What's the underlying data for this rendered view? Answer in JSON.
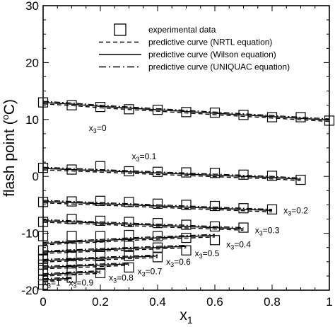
{
  "chart_data": {
    "type": "line",
    "xlabel": "x",
    "xlabel_sub": "1",
    "ylabel": "flash point (",
    "ylabel_sup": "o",
    "ylabel_tail": "C)",
    "xlim": [
      0,
      1
    ],
    "ylim": [
      -20,
      30
    ],
    "x_ticks": [
      {
        "v": 0,
        "label": "0"
      },
      {
        "v": 0.2,
        "label": "0.2"
      },
      {
        "v": 0.4,
        "label": "0.4"
      },
      {
        "v": 0.6,
        "label": "0.6"
      },
      {
        "v": 0.8,
        "label": "0.8"
      },
      {
        "v": 1,
        "label": "1"
      }
    ],
    "y_ticks": [
      {
        "v": -20,
        "label": "-20"
      },
      {
        "v": -10,
        "label": "-10"
      },
      {
        "v": 0,
        "label": "0"
      },
      {
        "v": 10,
        "label": "10"
      },
      {
        "v": 20,
        "label": "20"
      },
      {
        "v": 30,
        "label": "30"
      }
    ],
    "minor_x_step": 0.05,
    "minor_y_step": 2.5,
    "legend": {
      "placement": "top-center",
      "entries": [
        {
          "style": "square",
          "label": "experimental data"
        },
        {
          "style": "dashed",
          "label": "predictive curve (NRTL equation)"
        },
        {
          "style": "solid",
          "label": "predictive curve (Wilson equation)"
        },
        {
          "style": "dashdot",
          "label": "predictive curve (UNIQUAC equation)"
        }
      ]
    },
    "series": [
      {
        "label_pre": "x",
        "label_sub": "3",
        "label_post": "=0",
        "label_at": [
          0.16,
          8.0
        ],
        "x": [
          0,
          0.1,
          0.2,
          0.3,
          0.4,
          0.5,
          0.6,
          0.7,
          0.8,
          0.9,
          1.0
        ],
        "exp": [
          13.0,
          12.5,
          12.2,
          11.8,
          11.7,
          11.3,
          11.2,
          10.8,
          10.4,
          10.4,
          9.8
        ],
        "pred": [
          13.0,
          12.7,
          12.3,
          12.0,
          11.7,
          11.4,
          11.1,
          10.8,
          10.5,
          10.2,
          9.9
        ]
      },
      {
        "label_pre": "x",
        "label_sub": "3",
        "label_post": "=0.1",
        "label_at": [
          0.31,
          3.0
        ],
        "x": [
          0,
          0.1,
          0.2,
          0.3,
          0.4,
          0.5,
          0.6,
          0.7,
          0.8,
          0.9
        ],
        "exp": [
          1.5,
          1.2,
          1.8,
          0.9,
          0.8,
          0.7,
          0.6,
          0.3,
          0.1,
          -0.6
        ],
        "pred": [
          1.4,
          1.2,
          1.0,
          0.8,
          0.6,
          0.4,
          0.2,
          0.0,
          -0.2,
          -0.5
        ]
      },
      {
        "label_pre": "x",
        "label_sub": "3",
        "label_post": "=0.2",
        "label_at": [
          0.84,
          -6.5
        ],
        "x": [
          0,
          0.1,
          0.2,
          0.3,
          0.4,
          0.5,
          0.6,
          0.7,
          0.8
        ],
        "exp": [
          -4.5,
          -4.4,
          -4.3,
          -4.5,
          -4.8,
          -5.0,
          -5.2,
          -5.6,
          -5.8
        ],
        "pred": [
          -4.4,
          -4.6,
          -4.8,
          -5.0,
          -5.2,
          -5.4,
          -5.6,
          -5.8,
          -6.0
        ]
      },
      {
        "label_pre": "x",
        "label_sub": "3",
        "label_post": "=0.3",
        "label_at": [
          0.74,
          -10.0
        ],
        "x": [
          0,
          0.1,
          0.2,
          0.3,
          0.4,
          0.5,
          0.6,
          0.7
        ],
        "exp": [
          -8.0,
          -7.5,
          -7.8,
          -8.0,
          -8.2,
          -8.5,
          -8.8,
          -9.0
        ],
        "pred": [
          -7.8,
          -8.0,
          -8.2,
          -8.4,
          -8.6,
          -8.8,
          -9.0,
          -9.2
        ]
      },
      {
        "label_pre": "x",
        "label_sub": "3",
        "label_post": "=0.4",
        "label_at": [
          0.64,
          -12.5
        ],
        "x": [
          0,
          0.1,
          0.2,
          0.3,
          0.4,
          0.5,
          0.6
        ],
        "exp": [
          -10.5,
          -10.5,
          -10.5,
          -10.3,
          -10.5,
          -10.8,
          -11.2
        ],
        "pred": [
          -11.8,
          -11.5,
          -11.3,
          -11.0,
          -10.8,
          -10.6,
          -10.4
        ]
      },
      {
        "label_pre": "x",
        "label_sub": "3",
        "label_post": "=0.5",
        "label_at": [
          0.53,
          -14.0
        ],
        "x": [
          0,
          0.1,
          0.2,
          0.3,
          0.4,
          0.5
        ],
        "exp": [
          -13.0,
          -12.5,
          -12.3,
          -12.2,
          -12.5,
          -13.0
        ],
        "pred": [
          -13.3,
          -13.1,
          -12.9,
          -12.7,
          -12.5,
          -12.3
        ]
      },
      {
        "label_pre": "x",
        "label_sub": "3",
        "label_post": "=0.6",
        "label_at": [
          0.43,
          -15.5
        ],
        "x": [
          0,
          0.1,
          0.2,
          0.3,
          0.4
        ],
        "exp": [
          -14.5,
          -14.0,
          -14.0,
          -14.0,
          -14.2
        ],
        "pred": [
          -14.8,
          -14.6,
          -14.4,
          -14.2,
          -14.0
        ]
      },
      {
        "label_pre": "x",
        "label_sub": "3",
        "label_post": "=0.7",
        "label_at": [
          0.33,
          -17.2
        ],
        "x": [
          0,
          0.1,
          0.2,
          0.3
        ],
        "exp": [
          -15.5,
          -15.3,
          -15.5,
          -16.0
        ],
        "pred": [
          -16.0,
          -15.8,
          -15.6,
          -15.4
        ]
      },
      {
        "label_pre": "x",
        "label_sub": "3",
        "label_post": "=0.8",
        "label_at": [
          0.23,
          -18.3
        ],
        "x": [
          0,
          0.1,
          0.2
        ],
        "exp": [
          -16.5,
          -16.5,
          -17.0
        ],
        "pred": [
          -17.3,
          -17.0,
          -16.8
        ]
      },
      {
        "label_pre": "x",
        "label_sub": "3",
        "label_post": "=0.9",
        "label_at": [
          0.09,
          -19.2
        ],
        "x": [
          0,
          0.1
        ],
        "exp": [
          -18.2,
          -17.8
        ],
        "pred": [
          -18.2,
          -17.9
        ]
      },
      {
        "label_pre": "x",
        "label_sub": "3",
        "label_post": "=1",
        "label_at": [
          0.0,
          -19.2
        ],
        "x": [
          0
        ],
        "exp": [
          -19.0
        ],
        "pred": [
          -19.0
        ]
      }
    ]
  }
}
